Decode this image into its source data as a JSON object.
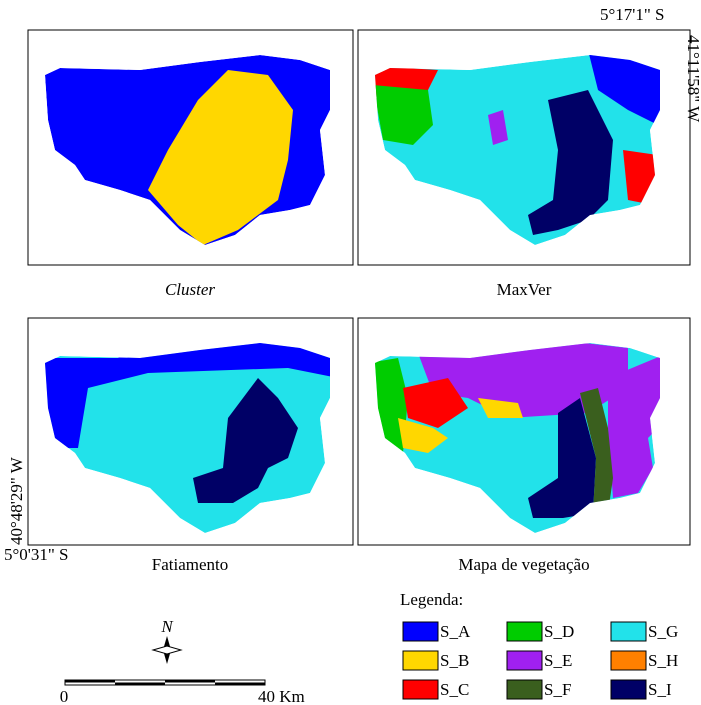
{
  "coordinates": {
    "top_right_lat": "5°17'1\" S",
    "top_right_lon": "41°11'58\" W",
    "bottom_left_lon": "40°48'29\" W",
    "bottom_left_lat": "5°0'31\" S"
  },
  "panels": [
    {
      "caption": "Cluster"
    },
    {
      "caption": "MaxVer"
    },
    {
      "caption": "Fatiamento"
    },
    {
      "caption": "Mapa de vegetação"
    }
  ],
  "legend": {
    "title": "Legenda:",
    "items": [
      {
        "name": "S_A",
        "color": "#0000ff"
      },
      {
        "name": "S_B",
        "color": "#ffd700"
      },
      {
        "name": "S_C",
        "color": "#ff0000"
      },
      {
        "name": "S_D",
        "color": "#00cc00"
      },
      {
        "name": "S_E",
        "color": "#a020f0"
      },
      {
        "name": "S_F",
        "color": "#3a5f1e"
      },
      {
        "name": "S_G",
        "color": "#22e2ea"
      },
      {
        "name": "S_H",
        "color": "#ff8000"
      },
      {
        "name": "S_I",
        "color": "#000066"
      }
    ]
  },
  "scale_bar": {
    "start": "0",
    "end": "40 Km"
  },
  "north": "N"
}
